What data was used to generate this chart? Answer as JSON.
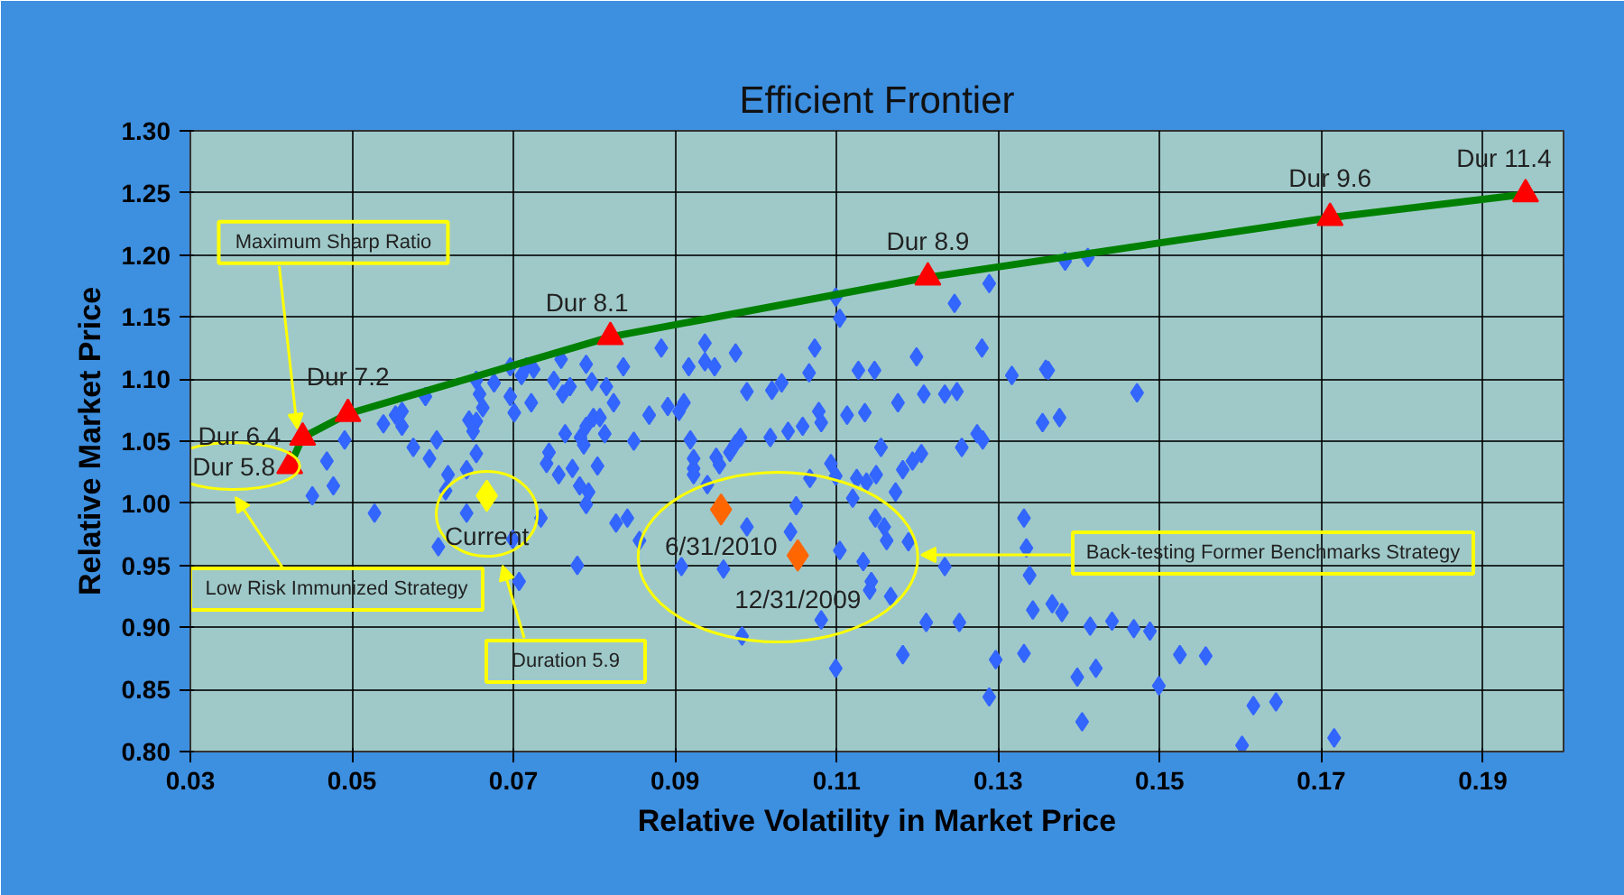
{
  "chart_data": {
    "type": "scatter",
    "title": "Efficient Frontier",
    "xlabel": "Relative Volatility in Market Price",
    "ylabel": "Relative Market Price",
    "xlim": [
      0.03,
      0.2
    ],
    "xticks": [
      0.03,
      0.05,
      0.07,
      0.09,
      0.11,
      0.13,
      0.15,
      0.17,
      0.19
    ],
    "ylim": [
      0.8,
      1.3
    ],
    "yticks": [
      {
        "value": 0.8,
        "label": "0.80"
      },
      {
        "value": 0.85,
        "label": "0.85"
      },
      {
        "value": 0.9,
        "label": "0.90"
      },
      {
        "value": 0.95,
        "label": "0.95"
      },
      {
        "value": 1.0,
        "label": "1.00"
      },
      {
        "value": 1.05,
        "label": "1.05"
      },
      {
        "value": 1.1,
        "label": "1.10"
      },
      {
        "value": 1.15,
        "label": "1.15"
      },
      {
        "value": 1.2,
        "label": "1.20"
      },
      {
        "value": 1.25,
        "label": "1.25"
      },
      {
        "value": 1.3,
        "label": "1.30"
      }
    ],
    "grid": true,
    "series": [
      {
        "type": "scatter",
        "marker": "diamond",
        "color": "#3366ff",
        "x": [
          0.0451,
          0.0469,
          0.0477,
          0.0491,
          0.0528,
          0.0539,
          0.0554,
          0.0562,
          0.0562,
          0.0576,
          0.0591,
          0.0596,
          0.0605,
          0.0607,
          0.0616,
          0.0619,
          0.0642,
          0.0642,
          0.0645,
          0.065,
          0.0654,
          0.0654,
          0.0658,
          0.0662,
          0.0654,
          0.0676,
          0.0696,
          0.0696,
          0.0701,
          0.0699,
          0.0707,
          0.071,
          0.0716,
          0.0722,
          0.0725,
          0.0734,
          0.0741,
          0.0744,
          0.075,
          0.0756,
          0.0759,
          0.0761,
          0.0764,
          0.077,
          0.0773,
          0.0779,
          0.0782,
          0.0783,
          0.0787,
          0.079,
          0.079,
          0.079,
          0.0793,
          0.0797,
          0.0799,
          0.0804,
          0.0807,
          0.0813,
          0.0815,
          0.0824,
          0.0827,
          0.0836,
          0.0841,
          0.0849,
          0.0856,
          0.0868,
          0.0883,
          0.0891,
          0.0905,
          0.0911,
          0.0917,
          0.0919,
          0.0923,
          0.0923,
          0.0923,
          0.0937,
          0.0937,
          0.094,
          0.0949,
          0.0951,
          0.0955,
          0.0968,
          0.0975,
          0.0975,
          0.0981,
          0.0989,
          0.0989,
          0.096,
          0.0908,
          0.0983,
          0.1018,
          0.102,
          0.1032,
          0.104,
          0.1043,
          0.105,
          0.1058,
          0.1066,
          0.1067,
          0.1073,
          0.1078,
          0.1081,
          0.1081,
          0.1093,
          0.1099,
          0.1099,
          0.1104,
          0.1104,
          0.1099,
          0.1113,
          0.112,
          0.1125,
          0.1127,
          0.1133,
          0.1135,
          0.1137,
          0.1141,
          0.1143,
          0.1147,
          0.1148,
          0.1149,
          0.1155,
          0.1159,
          0.1162,
          0.1167,
          0.1173,
          0.1176,
          0.1182,
          0.1182,
          0.1189,
          0.1194,
          0.1199,
          0.1205,
          0.1208,
          0.1211,
          0.1234,
          0.1234,
          0.1246,
          0.1249,
          0.1252,
          0.1255,
          0.1274,
          0.128,
          0.1281,
          0.1289,
          0.1289,
          0.1297,
          0.1317,
          0.1332,
          0.1332,
          0.1335,
          0.1339,
          0.1343,
          0.1355,
          0.1359,
          0.1362,
          0.1367,
          0.1376,
          0.1379,
          0.1383,
          0.1398,
          0.1404,
          0.1411,
          0.1414,
          0.1421,
          0.1472,
          0.1441,
          0.1468,
          0.1488,
          0.1499,
          0.1525,
          0.1557,
          0.1602,
          0.1616,
          0.1644,
          0.1716
        ],
        "values": [
          1.006,
          1.034,
          1.014,
          1.051,
          0.992,
          1.064,
          1.071,
          1.074,
          1.062,
          1.045,
          1.086,
          1.036,
          1.051,
          0.965,
          1.01,
          1.023,
          1.027,
          0.992,
          1.067,
          1.058,
          1.066,
          1.099,
          1.088,
          1.077,
          1.04,
          1.097,
          1.11,
          1.086,
          1.073,
          0.971,
          0.937,
          1.103,
          1.11,
          1.081,
          1.108,
          0.988,
          1.032,
          1.041,
          1.099,
          1.023,
          1.116,
          1.088,
          1.056,
          1.094,
          1.028,
          0.95,
          1.014,
          1.053,
          1.047,
          1.112,
          1.062,
          0.999,
          1.009,
          1.098,
          1.069,
          1.03,
          1.069,
          1.056,
          1.094,
          1.081,
          0.984,
          1.11,
          0.988,
          1.05,
          0.97,
          1.071,
          1.125,
          1.078,
          1.074,
          1.081,
          1.11,
          1.051,
          1.036,
          1.028,
          1.023,
          1.129,
          1.114,
          1.015,
          1.11,
          1.037,
          1.031,
          1.041,
          1.121,
          1.048,
          1.053,
          1.09,
          0.981,
          0.947,
          0.949,
          0.893,
          1.053,
          1.091,
          1.097,
          1.058,
          0.977,
          0.998,
          1.062,
          1.105,
          1.02,
          1.125,
          1.074,
          1.065,
          0.906,
          1.032,
          1.166,
          1.022,
          1.149,
          0.962,
          0.867,
          1.071,
          1.004,
          1.02,
          1.107,
          0.953,
          1.073,
          1.017,
          0.93,
          0.937,
          1.107,
          0.988,
          1.023,
          1.045,
          0.981,
          0.97,
          0.925,
          1.009,
          1.081,
          1.027,
          0.878,
          0.969,
          1.034,
          1.118,
          1.04,
          1.088,
          0.904,
          1.088,
          0.949,
          1.161,
          1.09,
          0.904,
          1.045,
          1.056,
          1.125,
          1.051,
          1.177,
          0.844,
          0.874,
          1.103,
          0.988,
          0.879,
          0.964,
          0.942,
          0.914,
          1.065,
          1.108,
          1.107,
          0.919,
          1.069,
          0.912,
          1.195,
          0.86,
          0.824,
          1.198,
          0.901,
          0.867,
          1.089,
          0.905,
          0.899,
          0.897,
          0.853,
          0.878,
          0.877,
          0.805,
          0.837,
          0.84,
          0.811
        ]
      },
      {
        "type": "line",
        "marker": "none",
        "color": "#008000",
        "x": [
          0.0423,
          0.0439,
          0.0495,
          0.082,
          0.1213,
          0.1711,
          0.1953
        ],
        "values": [
          1.03,
          1.053,
          1.072,
          1.134,
          1.182,
          1.23,
          1.249
        ]
      },
      {
        "type": "scatter",
        "marker": "triangle",
        "color": "#ff0000",
        "x": [
          0.0423,
          0.0439,
          0.0495,
          0.082,
          0.1213,
          0.1711,
          0.1953
        ],
        "values": [
          1.03,
          1.053,
          1.072,
          1.134,
          1.182,
          1.23,
          1.249
        ]
      },
      {
        "type": "scatter",
        "marker": "diamond",
        "color": "#ffff00",
        "x": [
          0.0667
        ],
        "values": [
          1.006
        ]
      },
      {
        "type": "scatter",
        "marker": "diamond",
        "color": "#ff6600",
        "x": [
          0.0957,
          0.1052
        ],
        "values": [
          0.995,
          0.958
        ]
      }
    ],
    "annotations": [
      {
        "text": "Dur 5.8",
        "x": 0.0423,
        "y": 1.03
      },
      {
        "text": "Dur 6.4",
        "x": 0.0439,
        "y": 1.053
      },
      {
        "text": "Dur 7.2",
        "x": 0.0495,
        "y": 1.072
      },
      {
        "text": "Dur 8.1",
        "x": 0.082,
        "y": 1.134
      },
      {
        "text": "Dur 8.9",
        "x": 0.1213,
        "y": 1.182
      },
      {
        "text": "Dur 9.6",
        "x": 0.1711,
        "y": 1.23
      },
      {
        "text": "Dur 11.4",
        "x": 0.1953,
        "y": 1.249
      },
      {
        "text": "Current",
        "x": 0.0667,
        "y": 1.006
      },
      {
        "text": "6/31/2010",
        "x": 0.0957,
        "y": 0.995
      },
      {
        "text": "12/31/2009",
        "x": 0.1052,
        "y": 0.958
      },
      {
        "text": "Maximum Sharp Ratio",
        "x": 0.0439,
        "y": 1.053
      },
      "Low Risk Immunized Strategy",
      "Duration 5.9",
      "Back-testing Former Benchmarks Strategy"
    ]
  }
}
